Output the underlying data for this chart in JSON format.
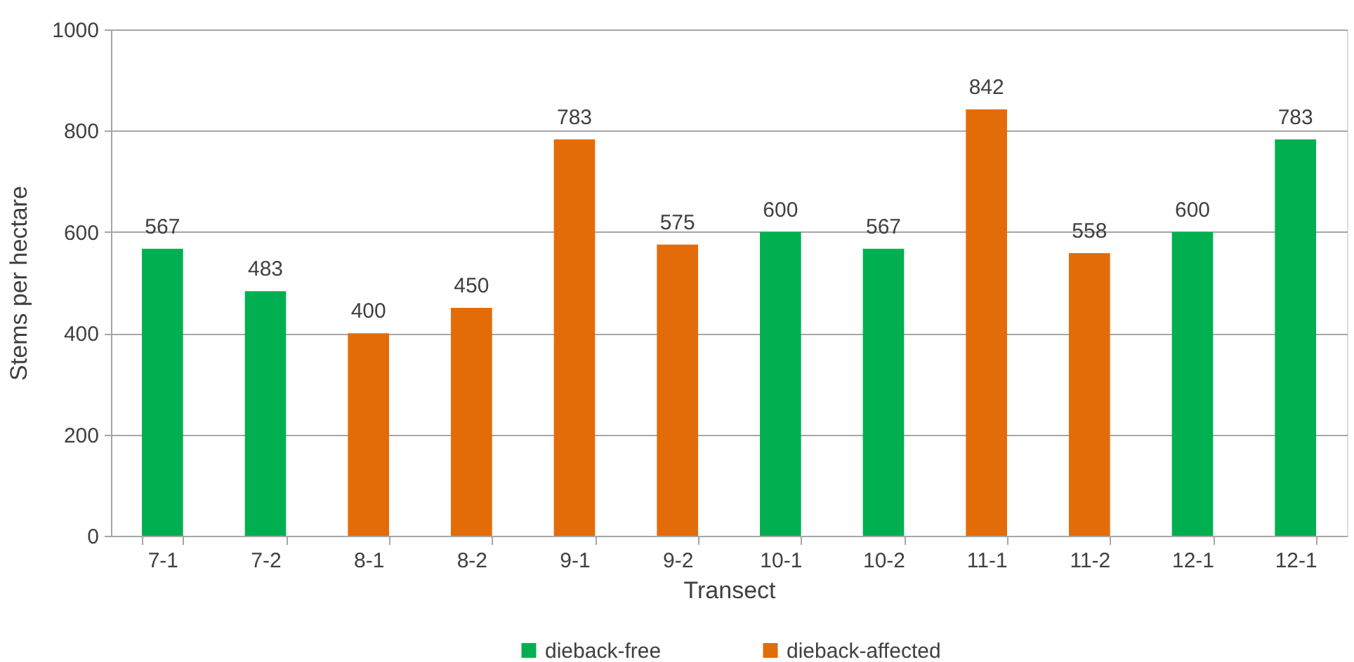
{
  "chart_data": {
    "type": "bar",
    "xlabel": "Transect",
    "ylabel": "Stems per hectare",
    "categories": [
      "7-1",
      "7-2",
      "8-1",
      "8-2",
      "9-1",
      "9-2",
      "10-1",
      "10-2",
      "11-1",
      "11-2",
      "12-1",
      "12-1"
    ],
    "series": [
      {
        "name": "dieback-free",
        "color": "#00b050",
        "values": [
          567,
          483,
          null,
          null,
          null,
          null,
          600,
          567,
          null,
          null,
          600,
          783
        ]
      },
      {
        "name": "dieback-affected",
        "color": "#e36c09",
        "values": [
          null,
          null,
          400,
          450,
          783,
          575,
          null,
          null,
          842,
          558,
          null,
          null
        ]
      }
    ],
    "ylim": [
      0,
      1000
    ],
    "yticks": [
      0,
      200,
      400,
      600,
      800,
      1000
    ],
    "grid": "y",
    "legend": "bottom",
    "data_labels": true
  }
}
